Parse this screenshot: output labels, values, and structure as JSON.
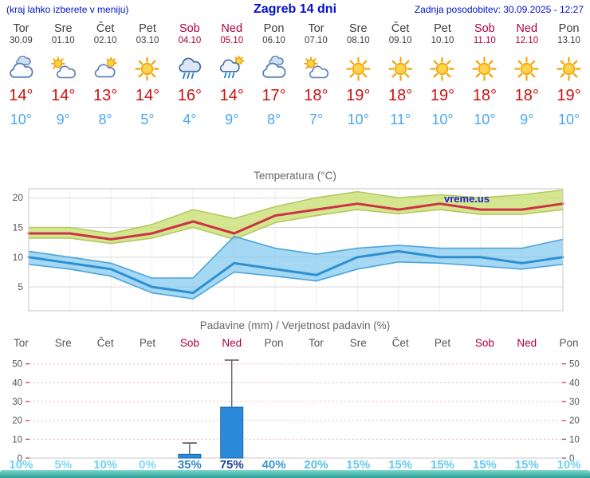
{
  "header": {
    "hint": "(kraj lahko izberete v meniju)",
    "title": "Zagreb 14 dni",
    "last_update": "Zadnja posodobitev: 30.09.2025 - 12:27"
  },
  "forecast": {
    "days": [
      {
        "name": "Tor",
        "date": "30.09",
        "weekend": false,
        "icon": "cloudy",
        "high": "14°",
        "low": "10°",
        "prob": "10%",
        "prob_color": "#6ed3ee"
      },
      {
        "name": "Sre",
        "date": "01.10",
        "weekend": false,
        "icon": "partly",
        "high": "14°",
        "low": "9°",
        "prob": "5%",
        "prob_color": "#7cdaf1"
      },
      {
        "name": "Čet",
        "date": "02.10",
        "weekend": false,
        "icon": "mostly",
        "high": "13°",
        "low": "8°",
        "prob": "10%",
        "prob_color": "#6ed3ee"
      },
      {
        "name": "Pet",
        "date": "03.10",
        "weekend": false,
        "icon": "sunny",
        "high": "14°",
        "low": "5°",
        "prob": "0%",
        "prob_color": "#7cdaf1"
      },
      {
        "name": "Sob",
        "date": "04.10",
        "weekend": true,
        "icon": "rain",
        "high": "16°",
        "low": "4°",
        "prob": "35%",
        "prob_color": "#2f86c8"
      },
      {
        "name": "Ned",
        "date": "05.10",
        "weekend": true,
        "icon": "sun-rain",
        "high": "14°",
        "low": "9°",
        "prob": "75%",
        "prob_color": "#1d3fa0"
      },
      {
        "name": "Pon",
        "date": "06.10",
        "weekend": false,
        "icon": "cloudy",
        "high": "17°",
        "low": "8°",
        "prob": "40%",
        "prob_color": "#3a97d0"
      },
      {
        "name": "Tor",
        "date": "07.10",
        "weekend": false,
        "icon": "partly",
        "high": "18°",
        "low": "7°",
        "prob": "20%",
        "prob_color": "#55c0e4"
      },
      {
        "name": "Sre",
        "date": "08.10",
        "weekend": false,
        "icon": "sunny",
        "high": "19°",
        "low": "10°",
        "prob": "15%",
        "prob_color": "#63cbec"
      },
      {
        "name": "Čet",
        "date": "09.10",
        "weekend": false,
        "icon": "sunny",
        "high": "18°",
        "low": "11°",
        "prob": "15%",
        "prob_color": "#63cbec"
      },
      {
        "name": "Pet",
        "date": "10.10",
        "weekend": false,
        "icon": "sunny",
        "high": "19°",
        "low": "10°",
        "prob": "15%",
        "prob_color": "#63cbec"
      },
      {
        "name": "Sob",
        "date": "11.10",
        "weekend": true,
        "icon": "sunny",
        "high": "18°",
        "low": "10°",
        "prob": "15%",
        "prob_color": "#63cbec"
      },
      {
        "name": "Ned",
        "date": "12.10",
        "weekend": true,
        "icon": "sunny",
        "high": "18°",
        "low": "9°",
        "prob": "15%",
        "prob_color": "#63cbec"
      },
      {
        "name": "Pon",
        "date": "13.10",
        "weekend": false,
        "icon": "sunny",
        "high": "19°",
        "low": "10°",
        "prob": "10%",
        "prob_color": "#6ed3ee"
      }
    ]
  },
  "charts": {
    "temperature": {
      "title": "Temperatura (°C)",
      "watermark": "vreme.us"
    },
    "precipitation": {
      "title": "Padavine (mm) / Verjetnost padavin (%)"
    }
  },
  "chart_data": [
    {
      "type": "line",
      "title": "Temperatura (°C)",
      "x": [
        "Tor 30.09",
        "Sre 01.10",
        "Čet 02.10",
        "Pet 03.10",
        "Sob 04.10",
        "Ned 05.10",
        "Pon 06.10",
        "Tor 07.10",
        "Sre 08.10",
        "Čet 09.10",
        "Pet 10.10",
        "Sob 11.10",
        "Ned 12.10",
        "Pon 13.10"
      ],
      "series": [
        {
          "name": "max",
          "values": [
            14,
            14,
            13,
            14,
            16,
            14,
            17,
            18,
            19,
            18,
            19,
            18,
            18,
            19
          ]
        },
        {
          "name": "max_band_upper",
          "values": [
            15,
            15,
            14,
            15.5,
            18,
            16.5,
            18.5,
            20,
            21,
            20,
            20.5,
            20,
            20.5,
            21.3
          ]
        },
        {
          "name": "max_band_lower",
          "values": [
            13.2,
            13.2,
            12.3,
            13.2,
            15,
            13,
            15.8,
            17,
            18,
            17.3,
            18,
            17.2,
            17.2,
            18
          ]
        },
        {
          "name": "min",
          "values": [
            10,
            9,
            8,
            5,
            4,
            9,
            8,
            7,
            10,
            11,
            10,
            10,
            9,
            10
          ]
        },
        {
          "name": "min_band_upper",
          "values": [
            11,
            10,
            9,
            6.5,
            6.5,
            13.5,
            11.5,
            10.5,
            11.5,
            12,
            11.5,
            11.5,
            11.5,
            13
          ]
        },
        {
          "name": "min_band_lower",
          "values": [
            8.8,
            8,
            6.8,
            4,
            3,
            7.5,
            6.8,
            6,
            8,
            9.2,
            9,
            8.5,
            8,
            8.8
          ]
        }
      ],
      "ylim": [
        1,
        21.5
      ],
      "yticks": [
        5,
        10,
        15,
        20
      ],
      "grid": true,
      "legend": "none"
    },
    {
      "type": "bar",
      "title": "Padavine (mm) / Verjetnost padavin (%)",
      "categories": [
        "Tor",
        "Sre",
        "Čet",
        "Pet",
        "Sob",
        "Ned",
        "Pon",
        "Tor",
        "Sre",
        "Čet",
        "Pet",
        "Sob",
        "Ned",
        "Pon"
      ],
      "series": [
        {
          "name": "padavine_mm",
          "values": [
            0,
            0,
            0,
            0,
            2,
            27,
            0,
            0,
            0,
            0,
            0,
            0,
            0,
            0
          ]
        },
        {
          "name": "padavine_max_mm",
          "values": [
            0,
            0,
            0,
            0,
            8,
            52,
            0,
            0,
            0,
            0,
            0,
            0,
            0,
            0
          ]
        },
        {
          "name": "verjetnost_pct",
          "values": [
            10,
            5,
            10,
            0,
            35,
            75,
            40,
            20,
            15,
            15,
            15,
            15,
            15,
            10
          ]
        }
      ],
      "ylim": [
        0,
        52
      ],
      "yticks": [
        0,
        10,
        20,
        30,
        40,
        50
      ],
      "grid": true,
      "legend": "none"
    }
  ],
  "colors": {
    "accent_blue": "#0011cc",
    "weekday_text": "#3d3d3d",
    "weekend_text": "#b00038",
    "high_temp": "#cc1111",
    "low_temp": "#4aa7f0",
    "max_line": "#cc3344",
    "max_band_fill": "rgba(203,224,118,0.8)",
    "max_band_edge": "#b5c95e",
    "min_line": "#2e8fd0",
    "min_band_fill": "rgba(125,199,238,0.7)",
    "min_band_edge": "#4da4db",
    "bar_fill": "#2b8ada",
    "bar_edge": "#1468b0",
    "grid_gray": "#d8d8d8",
    "precip_grid_pink": "#f0b6b6",
    "tick_red": "#cc5555",
    "watermark": "#2222cc",
    "footer_top": "#7fd8cf",
    "footer_bottom": "#2aa096"
  }
}
